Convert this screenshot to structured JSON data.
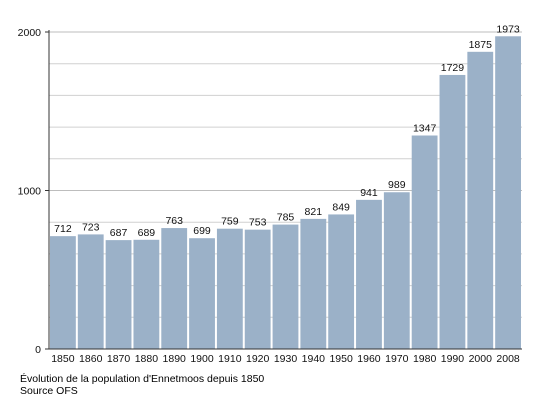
{
  "chart_data": {
    "type": "bar",
    "title": "",
    "xlabel": "",
    "ylabel": "",
    "categories": [
      "1850",
      "1860",
      "1870",
      "1880",
      "1890",
      "1900",
      "1910",
      "1920",
      "1930",
      "1940",
      "1950",
      "1960",
      "1970",
      "1980",
      "1990",
      "2000",
      "2008"
    ],
    "values": [
      712,
      723,
      687,
      689,
      763,
      699,
      759,
      753,
      785,
      821,
      849,
      941,
      989,
      1347,
      1729,
      1875,
      1973
    ],
    "ylim": [
      0,
      2000
    ],
    "y_tick_labels": [
      "0",
      "1000",
      "2000"
    ],
    "y_tick_values": [
      0,
      1000,
      2000
    ],
    "grid": true,
    "legend": "none",
    "bar_color": "#9bb1c8",
    "grid_color": "#d0d0d0"
  },
  "captions": {
    "line1": "Évolution de la population d'Ennetmoos depuis 1850",
    "line2": "Source OFS"
  }
}
